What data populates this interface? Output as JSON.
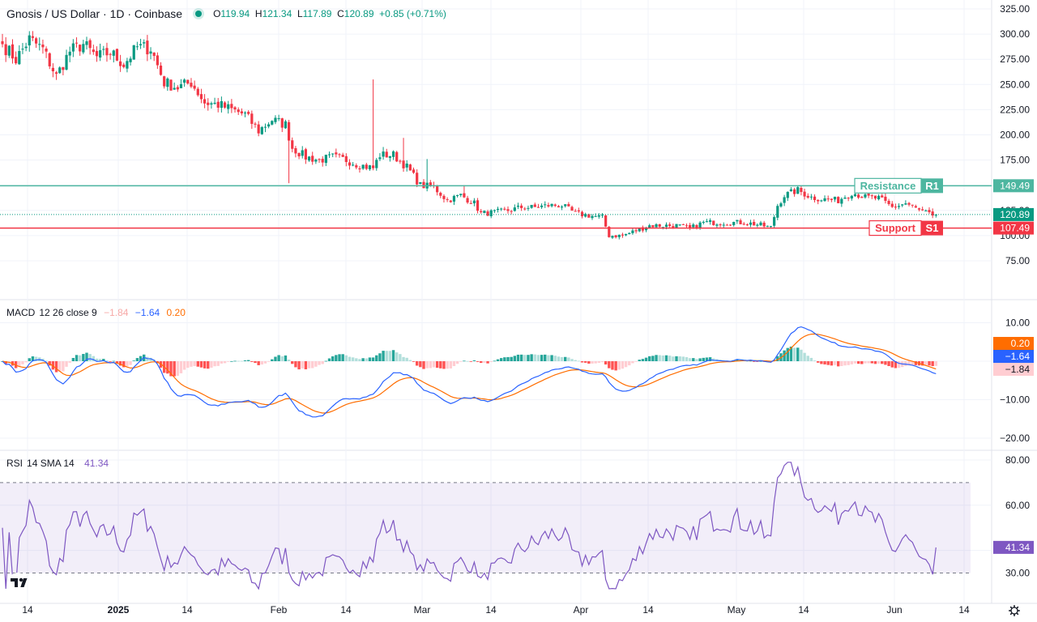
{
  "header": {
    "title": "Gnosis / US Dollar · 1D · Coinbase",
    "open_label": "O",
    "open": "119.94",
    "high_label": "H",
    "high": "121.34",
    "low_label": "L",
    "low": "117.89",
    "close_label": "C",
    "close": "120.89",
    "change": "+0.85 (+0.71%)"
  },
  "colors": {
    "up": "#089981",
    "down": "#f23645",
    "macd": "#2962ff",
    "signal": "#ff6d00",
    "rsi": "#7e57c2",
    "resistance": "#4db6a0",
    "support": "#f23645"
  },
  "levels": {
    "resistance": {
      "label": "Resistance",
      "code": "R1",
      "value": "149.49"
    },
    "support": {
      "label": "Support",
      "code": "S1",
      "value": "107.49"
    },
    "last_price": "120.89"
  },
  "chart_data": [
    {
      "type": "candlestick",
      "title": "Gnosis / US Dollar · 1D · Coinbase",
      "price_axis_ticks": [
        "325.00",
        "300.00",
        "275.00",
        "250.00",
        "225.00",
        "200.00",
        "175.00",
        "125.00",
        "100.00",
        "75.00"
      ],
      "ylim": [
        60,
        335
      ],
      "x_ticks": [
        "14",
        "2025",
        "14",
        "Feb",
        "14",
        "Mar",
        "14",
        "Apr",
        "14",
        "May",
        "14",
        "Jun",
        "14"
      ],
      "hlines": [
        {
          "name": "Resistance R1",
          "value": 149.49
        },
        {
          "name": "Support S1",
          "value": 107.49
        },
        {
          "name": "last",
          "value": 120.89
        }
      ],
      "keypoints": [
        {
          "i": 0,
          "c": 290
        },
        {
          "i": 4,
          "c": 275
        },
        {
          "i": 8,
          "c": 295
        },
        {
          "i": 12,
          "c": 285
        },
        {
          "i": 16,
          "c": 258
        },
        {
          "i": 20,
          "c": 283
        },
        {
          "i": 24,
          "c": 290
        },
        {
          "i": 28,
          "c": 277
        },
        {
          "i": 32,
          "c": 282
        },
        {
          "i": 36,
          "c": 270
        },
        {
          "i": 40,
          "c": 287
        },
        {
          "i": 44,
          "c": 286
        },
        {
          "i": 48,
          "c": 252
        },
        {
          "i": 52,
          "c": 247
        },
        {
          "i": 56,
          "c": 252
        },
        {
          "i": 60,
          "c": 232
        },
        {
          "i": 64,
          "c": 230
        },
        {
          "i": 68,
          "c": 225
        },
        {
          "i": 72,
          "c": 220
        },
        {
          "i": 76,
          "c": 204
        },
        {
          "i": 80,
          "c": 215
        },
        {
          "i": 84,
          "c": 210
        },
        {
          "i": 86,
          "c": 187
        },
        {
          "i": 90,
          "c": 178
        },
        {
          "i": 94,
          "c": 175
        },
        {
          "i": 98,
          "c": 178
        },
        {
          "i": 102,
          "c": 175
        },
        {
          "i": 106,
          "c": 170
        },
        {
          "i": 110,
          "c": 167
        },
        {
          "i": 112,
          "c": 180
        },
        {
          "i": 116,
          "c": 180
        },
        {
          "i": 120,
          "c": 168
        },
        {
          "i": 124,
          "c": 150
        },
        {
          "i": 128,
          "c": 148
        },
        {
          "i": 132,
          "c": 135
        },
        {
          "i": 136,
          "c": 140
        },
        {
          "i": 140,
          "c": 132
        },
        {
          "i": 142,
          "c": 122
        },
        {
          "i": 146,
          "c": 123
        },
        {
          "i": 150,
          "c": 125
        },
        {
          "i": 154,
          "c": 128
        },
        {
          "i": 158,
          "c": 128
        },
        {
          "i": 162,
          "c": 130
        },
        {
          "i": 166,
          "c": 130
        },
        {
          "i": 170,
          "c": 122
        },
        {
          "i": 174,
          "c": 120
        },
        {
          "i": 178,
          "c": 118
        },
        {
          "i": 180,
          "c": 100
        },
        {
          "i": 184,
          "c": 100
        },
        {
          "i": 188,
          "c": 105
        },
        {
          "i": 192,
          "c": 110
        },
        {
          "i": 196,
          "c": 110
        },
        {
          "i": 200,
          "c": 110
        },
        {
          "i": 204,
          "c": 107
        },
        {
          "i": 208,
          "c": 113
        },
        {
          "i": 212,
          "c": 113
        },
        {
          "i": 216,
          "c": 113
        },
        {
          "i": 220,
          "c": 113
        },
        {
          "i": 224,
          "c": 111
        },
        {
          "i": 228,
          "c": 108
        },
        {
          "i": 230,
          "c": 130
        },
        {
          "i": 232,
          "c": 140
        },
        {
          "i": 236,
          "c": 145
        },
        {
          "i": 240,
          "c": 138
        },
        {
          "i": 244,
          "c": 136
        },
        {
          "i": 248,
          "c": 135
        },
        {
          "i": 252,
          "c": 143
        },
        {
          "i": 256,
          "c": 138
        },
        {
          "i": 260,
          "c": 137
        },
        {
          "i": 264,
          "c": 128
        },
        {
          "i": 268,
          "c": 132
        },
        {
          "i": 272,
          "c": 125
        },
        {
          "i": 276,
          "c": 119.94
        },
        {
          "i": 277,
          "c": 120.89
        }
      ]
    },
    {
      "type": "line",
      "title": "MACD 12 26 close 9",
      "series": [
        {
          "name": "MACD"
        },
        {
          "name": "Signal"
        },
        {
          "name": "Histogram"
        }
      ],
      "values": {
        "histogram": "−1.84",
        "macd": "−1.64",
        "signal": "0.20"
      },
      "ylim": [
        -22,
        13
      ],
      "y_ticks": [
        "10.00",
        "−10.00",
        "−20.00"
      ]
    },
    {
      "type": "line",
      "title": "RSI 14 SMA 14",
      "value": "41.34",
      "ylim": [
        22,
        82
      ],
      "y_ticks": [
        "80.00",
        "60.00",
        "30.00"
      ],
      "bands": [
        30,
        70
      ]
    }
  ],
  "macd_header": {
    "name": "MACD",
    "params": "12 26 close 9",
    "hist": "−1.84",
    "macd": "−1.64",
    "signal": "0.20"
  },
  "rsi_header": {
    "name": "RSI",
    "params": "14 SMA 14",
    "value": "41.34"
  }
}
